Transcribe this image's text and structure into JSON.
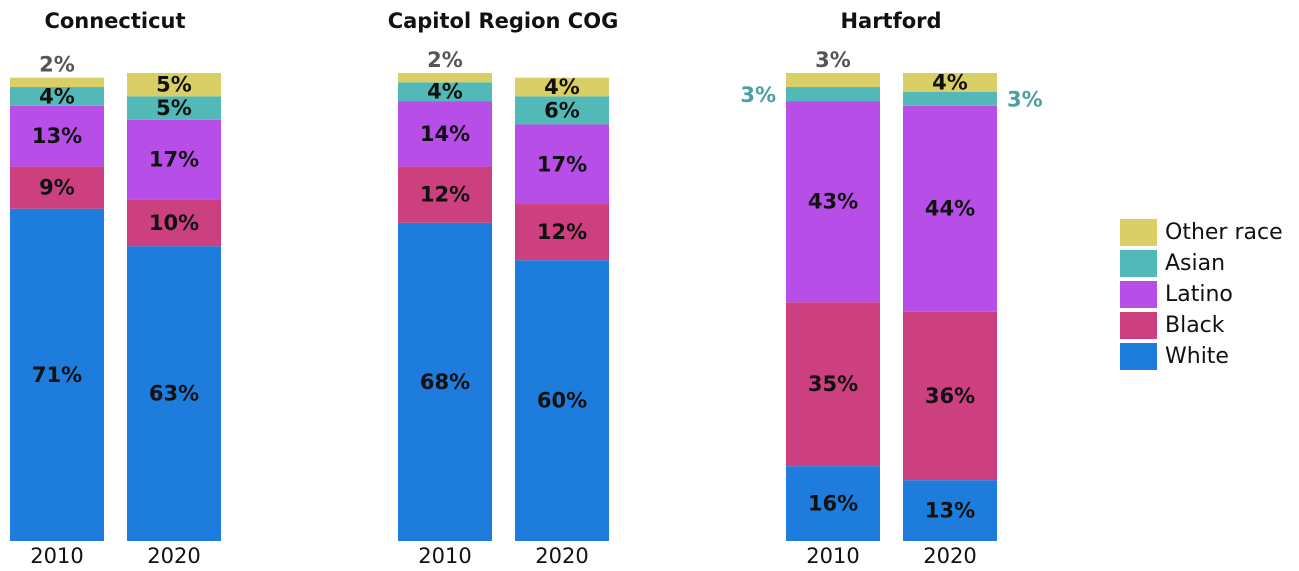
{
  "chart_data": [
    {
      "type": "bar",
      "title": "Connecticut",
      "categories": [
        "2010",
        "2020"
      ],
      "series": [
        {
          "name": "White",
          "color": "#1e7ddc",
          "values": [
            71,
            63
          ],
          "value_labels": [
            "71%",
            "63%"
          ]
        },
        {
          "name": "Black",
          "color": "#cc4080",
          "values": [
            9,
            10
          ],
          "value_labels": [
            "9%",
            "10%"
          ]
        },
        {
          "name": "Latino",
          "color": "#b84ee8",
          "values": [
            13,
            17
          ],
          "value_labels": [
            "13%",
            "17%"
          ]
        },
        {
          "name": "Asian",
          "color": "#52b8b8",
          "values": [
            4,
            5
          ],
          "value_labels": [
            "4%",
            "5%"
          ]
        },
        {
          "name": "Other race",
          "color": "#d9cf66",
          "values": [
            2,
            5
          ],
          "value_labels": [
            "2%",
            "5%"
          ]
        }
      ]
    },
    {
      "type": "bar",
      "title": "Capitol Region COG",
      "categories": [
        "2010",
        "2020"
      ],
      "series": [
        {
          "name": "White",
          "color": "#1e7ddc",
          "values": [
            68,
            60
          ],
          "value_labels": [
            "68%",
            "60%"
          ]
        },
        {
          "name": "Black",
          "color": "#cc4080",
          "values": [
            12,
            12
          ],
          "value_labels": [
            "12%",
            "12%"
          ]
        },
        {
          "name": "Latino",
          "color": "#b84ee8",
          "values": [
            14,
            17
          ],
          "value_labels": [
            "14%",
            "17%"
          ]
        },
        {
          "name": "Asian",
          "color": "#52b8b8",
          "values": [
            4,
            6
          ],
          "value_labels": [
            "4%",
            "6%"
          ]
        },
        {
          "name": "Other race",
          "color": "#d9cf66",
          "values": [
            2,
            4
          ],
          "value_labels": [
            "2%",
            "4%"
          ]
        }
      ]
    },
    {
      "type": "bar",
      "title": "Hartford",
      "categories": [
        "2010",
        "2020"
      ],
      "series": [
        {
          "name": "White",
          "color": "#1e7ddc",
          "values": [
            16,
            13
          ],
          "value_labels": [
            "16%",
            "13%"
          ]
        },
        {
          "name": "Black",
          "color": "#cc4080",
          "values": [
            35,
            36
          ],
          "value_labels": [
            "35%",
            "36%"
          ]
        },
        {
          "name": "Latino",
          "color": "#b84ee8",
          "values": [
            43,
            44
          ],
          "value_labels": [
            "43%",
            "44%"
          ]
        },
        {
          "name": "Asian",
          "color": "#52b8b8",
          "values": [
            3,
            3
          ],
          "value_labels": [
            "3%",
            "3%"
          ]
        },
        {
          "name": "Other race",
          "color": "#d9cf66",
          "values": [
            3,
            4
          ],
          "value_labels": [
            "3%",
            "4%"
          ]
        }
      ]
    }
  ]
}
